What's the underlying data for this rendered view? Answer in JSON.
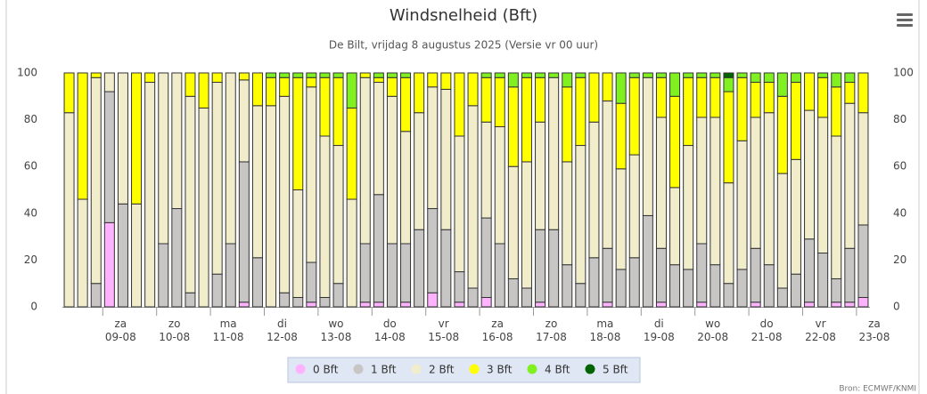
{
  "chart_data": {
    "type": "stacked_bar",
    "title": "Windsnelheid (Bft)",
    "subtitle": "De Bilt, vrijdag 8 augustus 2025 (Versie vr 00 uur)",
    "credit": "Bron: ECMWF/KNMI",
    "categories": [
      null,
      null,
      null,
      "za\n09-08",
      null,
      null,
      null,
      "zo\n10-08",
      null,
      null,
      null,
      "ma\n11-08",
      null,
      null,
      null,
      "di\n12-08",
      null,
      null,
      null,
      "wo\n13-08",
      null,
      null,
      null,
      "do\n14-08",
      null,
      null,
      null,
      "vr\n15-08",
      null,
      null,
      null,
      "za\n16-08",
      null,
      null,
      null,
      "zo\n17-08",
      null,
      null,
      null,
      "ma\n18-08",
      null,
      null,
      null,
      "di\n19-08",
      null,
      null,
      null,
      "wo\n20-08",
      null,
      null,
      null,
      "do\n21-08",
      null,
      null,
      null,
      "vr\n22-08",
      null,
      null,
      null,
      "za\n23-08"
    ],
    "ylim": [
      0,
      100
    ],
    "yticks": [
      0,
      20,
      40,
      60,
      80,
      100
    ],
    "grid": false,
    "legend": "bottom",
    "series": [
      {
        "name": "0 Bft",
        "color": "#ffb3ff",
        "values": [
          0,
          0,
          0,
          36,
          0,
          0,
          0,
          0,
          0,
          0,
          0,
          0,
          0,
          2,
          0,
          0,
          0,
          0,
          2,
          0,
          0,
          0,
          2,
          2,
          0,
          2,
          0,
          6,
          0,
          2,
          0,
          4,
          0,
          0,
          0,
          2,
          0,
          0,
          0,
          0,
          2,
          0,
          0,
          0,
          2,
          0,
          0,
          2,
          0,
          0,
          0,
          2,
          0,
          0,
          0,
          2,
          0,
          2,
          2,
          4
        ]
      },
      {
        "name": "1 Bft",
        "color": "#c8c5c5",
        "values": [
          0,
          0,
          10,
          56,
          44,
          0,
          0,
          27,
          42,
          6,
          0,
          14,
          27,
          60,
          21,
          0,
          6,
          4,
          17,
          4,
          10,
          0,
          25,
          46,
          27,
          25,
          33,
          36,
          33,
          13,
          8,
          34,
          27,
          12,
          8,
          31,
          33,
          18,
          10,
          21,
          23,
          16,
          21,
          39,
          23,
          18,
          16,
          25,
          18,
          10,
          16,
          23,
          18,
          8,
          14,
          27,
          23,
          10,
          23,
          31
        ]
      },
      {
        "name": "2 Bft",
        "color": "#f1edca",
        "values": [
          83,
          46,
          88,
          8,
          56,
          44,
          96,
          73,
          58,
          84,
          85,
          82,
          73,
          35,
          65,
          86,
          84,
          46,
          75,
          69,
          59,
          46,
          71,
          48,
          63,
          48,
          50,
          52,
          60,
          58,
          78,
          41,
          50,
          48,
          54,
          46,
          65,
          44,
          59,
          58,
          63,
          43,
          44,
          59,
          56,
          33,
          53,
          54,
          63,
          43,
          55,
          56,
          65,
          49,
          49,
          55,
          58,
          61,
          62,
          48
        ]
      },
      {
        "name": "3 Bft",
        "color": "#ffff00",
        "values": [
          17,
          54,
          2,
          0,
          0,
          56,
          4,
          0,
          0,
          10,
          15,
          4,
          0,
          3,
          14,
          12,
          8,
          48,
          4,
          25,
          29,
          39,
          2,
          2,
          8,
          23,
          17,
          6,
          7,
          27,
          14,
          19,
          21,
          34,
          36,
          19,
          0,
          32,
          29,
          21,
          12,
          28,
          33,
          0,
          17,
          39,
          29,
          17,
          17,
          39,
          27,
          15,
          13,
          33,
          33,
          16,
          17,
          21,
          9,
          17
        ]
      },
      {
        "name": "4 Bft",
        "color": "#80f020",
        "values": [
          0,
          0,
          0,
          0,
          0,
          0,
          0,
          0,
          0,
          0,
          0,
          0,
          0,
          0,
          0,
          2,
          2,
          2,
          2,
          2,
          2,
          15,
          0,
          2,
          2,
          2,
          0,
          0,
          0,
          0,
          0,
          2,
          2,
          6,
          2,
          2,
          2,
          6,
          2,
          0,
          0,
          13,
          2,
          2,
          2,
          10,
          2,
          2,
          2,
          6,
          2,
          4,
          4,
          10,
          4,
          0,
          2,
          6,
          4,
          0
        ]
      },
      {
        "name": "5 Bft",
        "color": "#006400",
        "values": [
          0,
          0,
          0,
          0,
          0,
          0,
          0,
          0,
          0,
          0,
          0,
          0,
          0,
          0,
          0,
          0,
          0,
          0,
          0,
          0,
          0,
          0,
          0,
          0,
          0,
          0,
          0,
          0,
          0,
          0,
          0,
          0,
          0,
          0,
          0,
          0,
          0,
          0,
          0,
          0,
          0,
          0,
          0,
          0,
          0,
          0,
          0,
          0,
          0,
          2,
          0,
          0,
          0,
          0,
          0,
          0,
          0,
          0,
          0,
          0
        ]
      }
    ]
  }
}
